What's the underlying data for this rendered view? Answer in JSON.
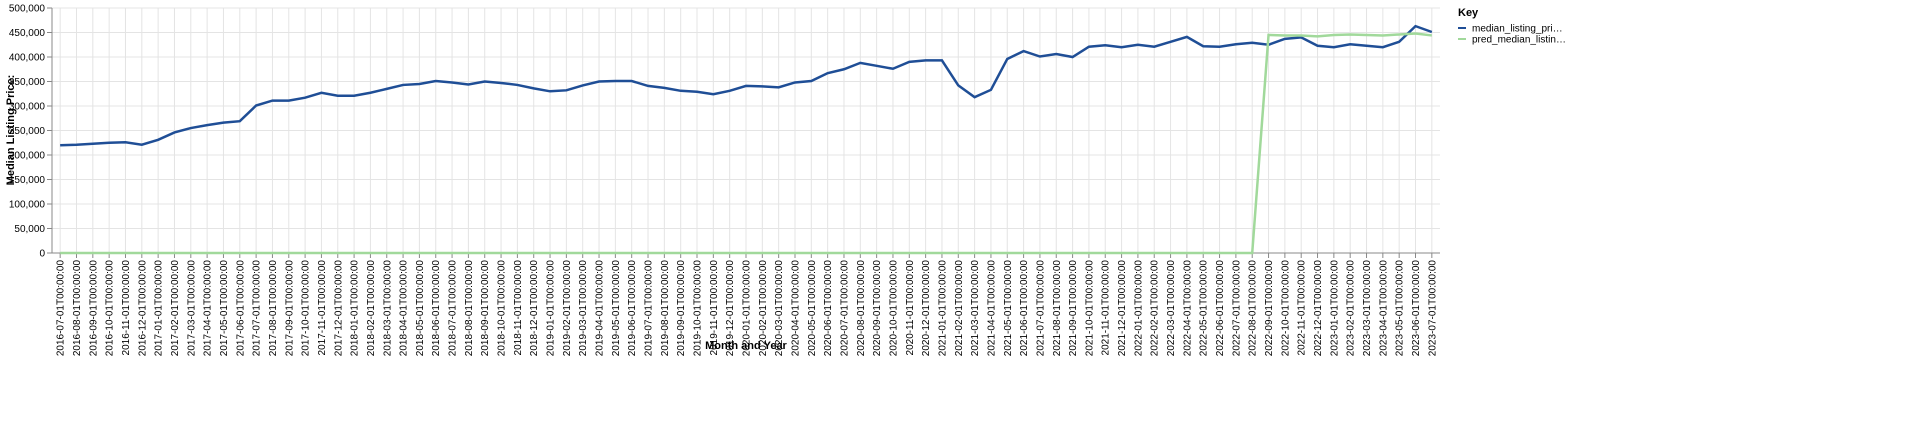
{
  "chart_data": {
    "type": "line",
    "x_label": "Month and Year",
    "y_label": "Median Listing Price:",
    "legend_title": "Key",
    "legend_position": "right",
    "grid": true,
    "categories": [
      "2016-07-01T00:00:00",
      "2016-08-01T00:00:00",
      "2016-09-01T00:00:00",
      "2016-10-01T00:00:00",
      "2016-11-01T00:00:00",
      "2016-12-01T00:00:00",
      "2017-01-01T00:00:00",
      "2017-02-01T00:00:00",
      "2017-03-01T00:00:00",
      "2017-04-01T00:00:00",
      "2017-05-01T00:00:00",
      "2017-06-01T00:00:00",
      "2017-07-01T00:00:00",
      "2017-08-01T00:00:00",
      "2017-09-01T00:00:00",
      "2017-10-01T00:00:00",
      "2017-11-01T00:00:00",
      "2017-12-01T00:00:00",
      "2018-01-01T00:00:00",
      "2018-02-01T00:00:00",
      "2018-03-01T00:00:00",
      "2018-04-01T00:00:00",
      "2018-05-01T00:00:00",
      "2018-06-01T00:00:00",
      "2018-07-01T00:00:00",
      "2018-08-01T00:00:00",
      "2018-09-01T00:00:00",
      "2018-10-01T00:00:00",
      "2018-11-01T00:00:00",
      "2018-12-01T00:00:00",
      "2019-01-01T00:00:00",
      "2019-02-01T00:00:00",
      "2019-03-01T00:00:00",
      "2019-04-01T00:00:00",
      "2019-05-01T00:00:00",
      "2019-06-01T00:00:00",
      "2019-07-01T00:00:00",
      "2019-08-01T00:00:00",
      "2019-09-01T00:00:00",
      "2019-10-01T00:00:00",
      "2019-11-01T00:00:00",
      "2019-12-01T00:00:00",
      "2020-01-01T00:00:00",
      "2020-02-01T00:00:00",
      "2020-03-01T00:00:00",
      "2020-04-01T00:00:00",
      "2020-05-01T00:00:00",
      "2020-06-01T00:00:00",
      "2020-07-01T00:00:00",
      "2020-08-01T00:00:00",
      "2020-09-01T00:00:00",
      "2020-10-01T00:00:00",
      "2020-11-01T00:00:00",
      "2020-12-01T00:00:00",
      "2021-01-01T00:00:00",
      "2021-02-01T00:00:00",
      "2021-03-01T00:00:00",
      "2021-04-01T00:00:00",
      "2021-05-01T00:00:00",
      "2021-06-01T00:00:00",
      "2021-07-01T00:00:00",
      "2021-08-01T00:00:00",
      "2021-09-01T00:00:00",
      "2021-10-01T00:00:00",
      "2021-11-01T00:00:00",
      "2021-12-01T00:00:00",
      "2022-01-01T00:00:00",
      "2022-02-01T00:00:00",
      "2022-03-01T00:00:00",
      "2022-04-01T00:00:00",
      "2022-05-01T00:00:00",
      "2022-06-01T00:00:00",
      "2022-07-01T00:00:00",
      "2022-08-01T00:00:00",
      "2022-09-01T00:00:00",
      "2022-10-01T00:00:00",
      "2022-11-01T00:00:00",
      "2022-12-01T00:00:00",
      "2023-01-01T00:00:00",
      "2023-02-01T00:00:00",
      "2023-03-01T00:00:00",
      "2023-04-01T00:00:00",
      "2023-05-01T00:00:00",
      "2023-06-01T00:00:00",
      "2023-07-01T00:00:00"
    ],
    "series": [
      {
        "name": "median_listing_pri…",
        "color": "#1f4e96",
        "values": [
          220000,
          221000,
          223000,
          225000,
          226000,
          221000,
          231000,
          246000,
          255000,
          261000,
          266000,
          269000,
          301000,
          311000,
          311000,
          317000,
          327000,
          321000,
          321000,
          327000,
          335000,
          343000,
          345000,
          351000,
          348000,
          344000,
          350000,
          347000,
          343000,
          336000,
          330000,
          332000,
          342000,
          350000,
          351000,
          351000,
          341000,
          337000,
          331000,
          329000,
          324000,
          331000,
          341000,
          340000,
          338000,
          348000,
          351000,
          367000,
          375000,
          388000,
          382000,
          376000,
          390000,
          393000,
          393000,
          342000,
          318000,
          333000,
          396000,
          412000,
          401000,
          406000,
          400000,
          421000,
          424000,
          420000,
          425000,
          421000,
          431000,
          441000,
          422000,
          421000,
          426000,
          429000,
          425000,
          437000,
          440000,
          423000,
          420000,
          426000,
          423000,
          420000,
          431000,
          463000,
          451000
        ]
      },
      {
        "name": "pred_median_listin…",
        "color": "#a1d99b",
        "values": [
          0,
          0,
          0,
          0,
          0,
          0,
          0,
          0,
          0,
          0,
          0,
          0,
          0,
          0,
          0,
          0,
          0,
          0,
          0,
          0,
          0,
          0,
          0,
          0,
          0,
          0,
          0,
          0,
          0,
          0,
          0,
          0,
          0,
          0,
          0,
          0,
          0,
          0,
          0,
          0,
          0,
          0,
          0,
          0,
          0,
          0,
          0,
          0,
          0,
          0,
          0,
          0,
          0,
          0,
          0,
          0,
          0,
          0,
          0,
          0,
          0,
          0,
          0,
          0,
          0,
          0,
          0,
          0,
          0,
          0,
          0,
          0,
          0,
          0,
          445000,
          444000,
          444000,
          442000,
          445000,
          446000,
          445000,
          444000,
          446000,
          448000,
          444000
        ]
      }
    ],
    "ylim": [
      0,
      500000
    ],
    "yticks": [
      0,
      {
        "value": 50000,
        "label": "50,000"
      },
      {
        "value": 100000,
        "label": "100,000"
      },
      {
        "value": 150000,
        "label": "150,000"
      },
      {
        "value": 200000,
        "label": "200,000"
      },
      {
        "value": 250000,
        "label": "250,000"
      },
      {
        "value": 300000,
        "label": "300,000"
      },
      {
        "value": 350000,
        "label": "350,000"
      },
      {
        "value": 400000,
        "label": "400,000"
      },
      {
        "value": 450000,
        "label": "450,000"
      },
      {
        "value": 500000,
        "label": "500,000"
      }
    ]
  }
}
